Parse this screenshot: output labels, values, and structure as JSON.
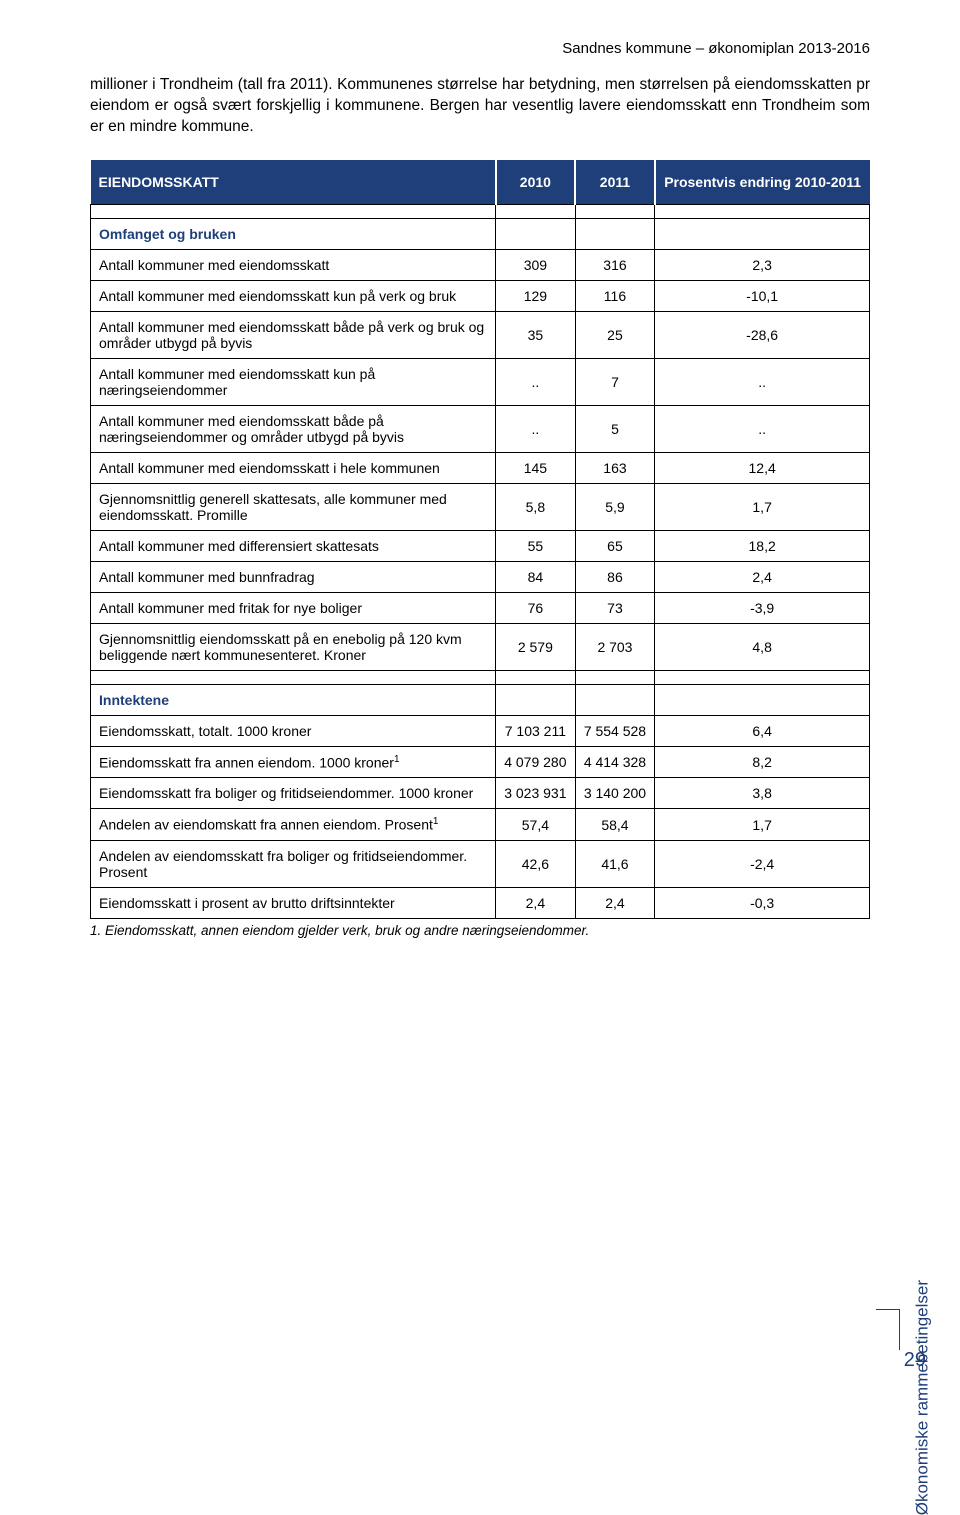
{
  "header": "Sandnes kommune – økonomiplan 2013-2016",
  "paragraph": "millioner i Trondheim (tall fra 2011). Kommunenes størrelse har betydning, men størrelsen på eiendomsskatten pr eiendom er også svært forskjellig i kommunene. Bergen har vesentlig lavere eiendomsskatt enn Trondheim som er en mindre kommune.",
  "table": {
    "head": {
      "label": "EIENDOMSSKATT",
      "c1": "2010",
      "c2": "2011",
      "c3": "Prosentvis endring 2010-2011"
    },
    "section1": "Omfanget og bruken",
    "section2": "Inntektene",
    "rows1": [
      {
        "label": "Antall kommuner med eiendomsskatt",
        "c1": "309",
        "c2": "316",
        "c3": "2,3"
      },
      {
        "label": "Antall kommuner med eiendomsskatt kun på verk og bruk",
        "c1": "129",
        "c2": "116",
        "c3": "-10,1"
      },
      {
        "label": "Antall kommuner med eiendomsskatt både på verk og bruk og områder utbygd på byvis",
        "c1": "35",
        "c2": "25",
        "c3": "-28,6"
      },
      {
        "label": "Antall kommuner med eiendomsskatt kun på næringseiendommer",
        "c1": "..",
        "c2": "7",
        "c3": ".."
      },
      {
        "label": "Antall kommuner med eiendomsskatt både på næringseiendommer og områder utbygd på byvis",
        "c1": "..",
        "c2": "5",
        "c3": ".."
      },
      {
        "label": "Antall kommuner med eiendomsskatt i hele kommunen",
        "c1": "145",
        "c2": "163",
        "c3": "12,4"
      },
      {
        "label": "Gjennomsnittlig generell skattesats, alle kommuner med eiendomsskatt. Promille",
        "c1": "5,8",
        "c2": "5,9",
        "c3": "1,7"
      },
      {
        "label": "Antall kommuner med differensiert skattesats",
        "c1": "55",
        "c2": "65",
        "c3": "18,2"
      },
      {
        "label": "Antall kommuner med bunnfradrag",
        "c1": "84",
        "c2": "86",
        "c3": "2,4"
      },
      {
        "label": "Antall kommuner med fritak for nye boliger",
        "c1": "76",
        "c2": "73",
        "c3": "-3,9"
      },
      {
        "label": "Gjennomsnittlig eiendomsskatt på en enebolig på 120 kvm beliggende nært kommunesenteret. Kroner",
        "c1": "2 579",
        "c2": "2 703",
        "c3": "4,8"
      }
    ],
    "rows2": [
      {
        "label": "Eiendomsskatt, totalt. 1000 kroner",
        "c1": "7 103 211",
        "c2": "7 554 528",
        "c3": "6,4"
      },
      {
        "label": "Eiendomsskatt fra annen eiendom. 1000 kroner",
        "sup": "1",
        "c1": "4 079 280",
        "c2": "4 414 328",
        "c3": "8,2"
      },
      {
        "label": "Eiendomsskatt fra boliger og fritidseiendommer. 1000 kroner",
        "c1": "3 023 931",
        "c2": "3 140 200",
        "c3": "3,8"
      },
      {
        "label": "Andelen av eiendomskatt fra annen eiendom. Prosent",
        "sup": "1",
        "c1": "57,4",
        "c2": "58,4",
        "c3": "1,7"
      },
      {
        "label": "Andelen av eiendomsskatt fra boliger og fritidseiendommer. Prosent",
        "c1": "42,6",
        "c2": "41,6",
        "c3": "-2,4"
      },
      {
        "label": "Eiendomsskatt i prosent av brutto driftsinntekter",
        "c1": "2,4",
        "c2": "2,4",
        "c3": "-0,3"
      }
    ]
  },
  "footnote": "1. Eiendomsskatt, annen eiendom gjelder verk, bruk og andre næringseiendommer.",
  "side_label": "Økonomiske rammebetingelser",
  "page_number": "29",
  "colors": {
    "brand": "#1f3f7a",
    "text": "#000000",
    "bg": "#ffffff"
  }
}
